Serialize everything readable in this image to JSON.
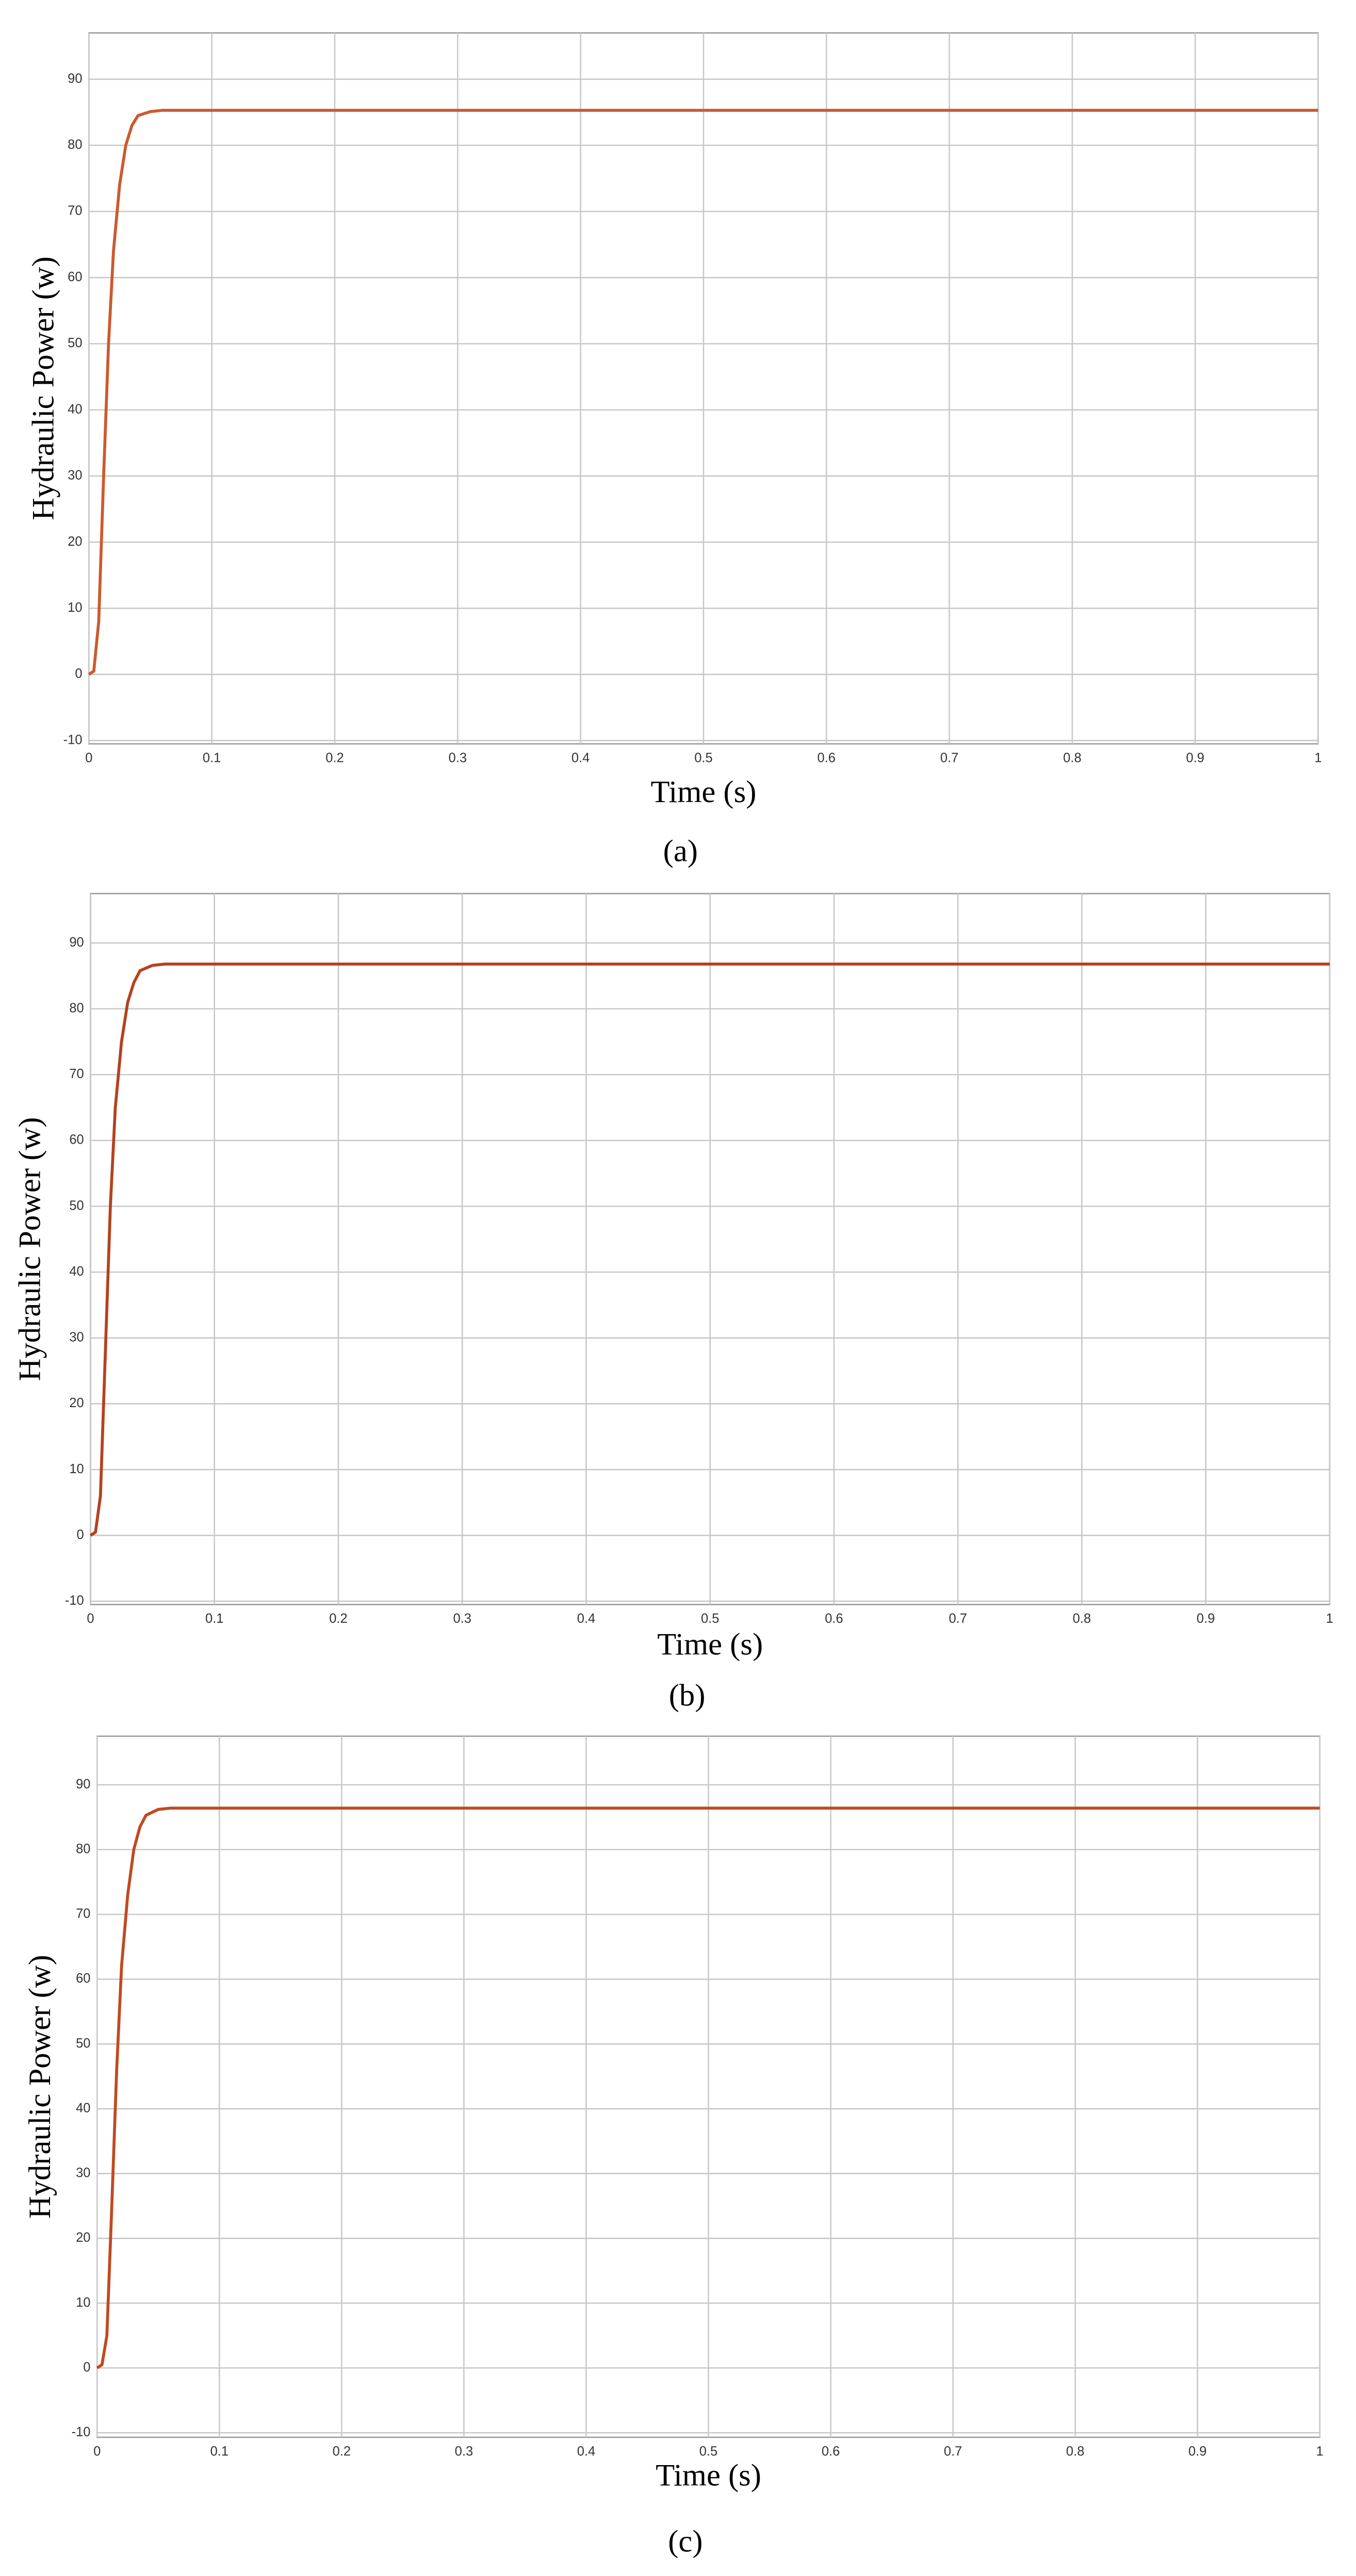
{
  "chart_data": [
    {
      "type": "line",
      "x_label": "Time (s)",
      "y_label": "Hydraulic Power (w)",
      "caption": "(a)",
      "x": [
        0,
        0.004,
        0.008,
        0.012,
        0.016,
        0.02,
        0.025,
        0.03,
        0.035,
        0.04,
        0.05,
        0.06,
        0.08,
        0.1,
        0.2,
        0.3,
        0.4,
        0.5,
        0.6,
        0.7,
        0.8,
        0.9,
        1
      ],
      "values": [
        0,
        0.5,
        8,
        30,
        50,
        64,
        74,
        80,
        83,
        84.5,
        85.1,
        85.3,
        85.3,
        85.3,
        85.3,
        85.3,
        85.3,
        85.3,
        85.3,
        85.3,
        85.3,
        85.3,
        85.3
      ],
      "color": "#cc5a2e",
      "xlim": [
        0,
        1
      ],
      "ylim": [
        -10.5,
        97
      ],
      "xticks": [
        0,
        0.1,
        0.2,
        0.3,
        0.4,
        0.5,
        0.6,
        0.7,
        0.8,
        0.9,
        1
      ],
      "yticks": [
        -10,
        0,
        10,
        20,
        30,
        40,
        50,
        60,
        70,
        80,
        90
      ],
      "grid": true
    },
    {
      "type": "line",
      "x_label": "Time (s)",
      "y_label": "Hydraulic Power (w)",
      "caption": "(b)",
      "x": [
        0,
        0.004,
        0.008,
        0.012,
        0.016,
        0.02,
        0.025,
        0.03,
        0.035,
        0.04,
        0.05,
        0.06,
        0.08,
        0.1,
        0.2,
        0.3,
        0.4,
        0.5,
        0.6,
        0.7,
        0.8,
        0.9,
        1
      ],
      "values": [
        0,
        0.5,
        6,
        28,
        50,
        65,
        75,
        81,
        84,
        85.8,
        86.6,
        86.8,
        86.8,
        86.8,
        86.8,
        86.8,
        86.8,
        86.8,
        86.8,
        86.8,
        86.8,
        86.8,
        86.8
      ],
      "color": "#b5421e",
      "xlim": [
        0,
        1
      ],
      "ylim": [
        -10.5,
        97.5
      ],
      "xticks": [
        0,
        0.1,
        0.2,
        0.3,
        0.4,
        0.5,
        0.6,
        0.7,
        0.8,
        0.9,
        1
      ],
      "yticks": [
        -10,
        0,
        10,
        20,
        30,
        40,
        50,
        60,
        70,
        80,
        90
      ],
      "grid": true
    },
    {
      "type": "line",
      "x_label": "Time (s)",
      "y_label": "Hydraulic Power (w)",
      "caption": "(c)",
      "x": [
        0,
        0.004,
        0.008,
        0.012,
        0.016,
        0.02,
        0.025,
        0.03,
        0.035,
        0.04,
        0.05,
        0.06,
        0.08,
        0.1,
        0.2,
        0.3,
        0.4,
        0.5,
        0.6,
        0.7,
        0.8,
        0.9,
        1
      ],
      "values": [
        0,
        0.5,
        5,
        25,
        46,
        62,
        73,
        80,
        83.5,
        85.3,
        86.2,
        86.4,
        86.4,
        86.4,
        86.4,
        86.4,
        86.4,
        86.4,
        86.4,
        86.4,
        86.4,
        86.4,
        86.4
      ],
      "color": "#c04a22",
      "xlim": [
        0,
        1
      ],
      "ylim": [
        -10.7,
        97.5
      ],
      "xticks": [
        0,
        0.1,
        0.2,
        0.3,
        0.4,
        0.5,
        0.6,
        0.7,
        0.8,
        0.9,
        1
      ],
      "yticks": [
        -10,
        0,
        10,
        20,
        30,
        40,
        50,
        60,
        70,
        80,
        90
      ],
      "grid": true
    }
  ]
}
